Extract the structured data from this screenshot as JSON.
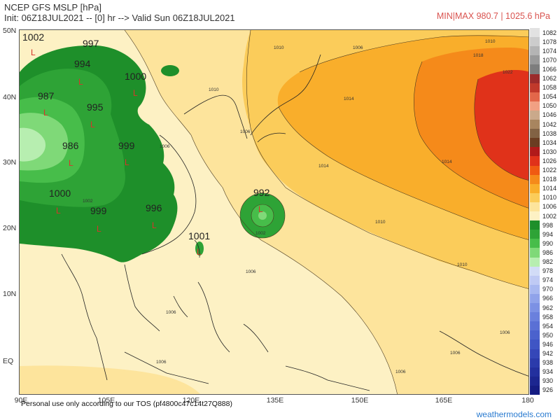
{
  "header": {
    "title": "NCEP GFS MSLP [hPa]",
    "subtitle": "Init: 06Z18JUL2021 -- [0] hr --> Valid Sun 06Z18JUL2021",
    "minmax": "MIN|MAX 980.7 | 1025.6 hPa"
  },
  "axes": {
    "lat_labels": [
      "50N",
      "40N",
      "30N",
      "20N",
      "10N",
      "EQ"
    ],
    "lon_labels": [
      "90E",
      "105E",
      "120E",
      "135E",
      "150E",
      "165E",
      "180"
    ]
  },
  "footer": {
    "tos": "Personal use only according to our TOS (pf4800c47c14t27Q888)",
    "brand": "weathermodels.com"
  },
  "legend": {
    "labels": [
      "1082",
      "1078",
      "1074",
      "1070",
      "1066",
      "1062",
      "1058",
      "1054",
      "1050",
      "1046",
      "1042",
      "1038",
      "1034",
      "1030",
      "1026",
      "1022",
      "1018",
      "1014",
      "1010",
      "1006",
      "1002",
      "998",
      "994",
      "990",
      "986",
      "982",
      "978",
      "974",
      "970",
      "966",
      "962",
      "958",
      "954",
      "950",
      "946",
      "942",
      "938",
      "934",
      "930",
      "926"
    ],
    "colors": [
      "#e2e2e2",
      "#cccccc",
      "#b4b4b4",
      "#999999",
      "#7d7d7d",
      "#9b2b2b",
      "#c0392b",
      "#e2674a",
      "#f1a083",
      "#caa98b",
      "#a8855f",
      "#826244",
      "#6b3d22",
      "#b11a1a",
      "#e0321a",
      "#f05a12",
      "#f58a1a",
      "#f9ae2b",
      "#fbcc5a",
      "#fde49c",
      "#fdf1c4",
      "#1e8f2a",
      "#2ea336",
      "#47bd4a",
      "#7fd978",
      "#b7eeb0",
      "#d2dcf7",
      "#bfcaf4",
      "#a8b8f0",
      "#90a3ea",
      "#7c91e4",
      "#6a80dd",
      "#5a70d5",
      "#4b62cd",
      "#3f55c4",
      "#3547b8",
      "#2b3bab",
      "#23309e",
      "#1c2690",
      "#151c82"
    ]
  },
  "pressure_labels": {
    "values": [
      "1002",
      "997",
      "994",
      "1000",
      "987",
      "995",
      "986",
      "999",
      "1000",
      "999",
      "996",
      "992",
      "1001"
    ],
    "low_marker": "L"
  },
  "isobar_labels": [
    "1010",
    "1014",
    "1018",
    "1022",
    "1006",
    "1010",
    "1014",
    "1010",
    "1006",
    "1002",
    "1006",
    "1006",
    "1006",
    "1006",
    "1006",
    "1010",
    "1014",
    "1010",
    "1006",
    "1002",
    "1006"
  ]
}
